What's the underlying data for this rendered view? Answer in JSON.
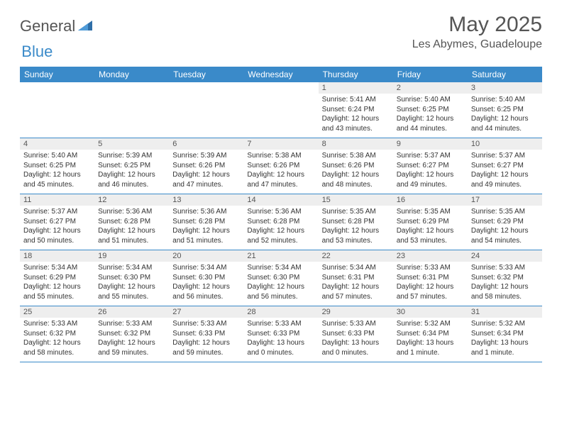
{
  "brand": {
    "name_gray": "General",
    "name_blue": "Blue"
  },
  "title": "May 2025",
  "location": "Les Abymes, Guadeloupe",
  "colors": {
    "header_bg": "#3a8ac9",
    "header_text": "#ffffff",
    "daynum_bg": "#eeeeee",
    "text": "#333333",
    "rule": "#3a8ac9"
  },
  "typography": {
    "title_fontsize": 30,
    "location_fontsize": 16,
    "dow_fontsize": 12,
    "cell_fontsize": 10
  },
  "days_of_week": [
    "Sunday",
    "Monday",
    "Tuesday",
    "Wednesday",
    "Thursday",
    "Friday",
    "Saturday"
  ],
  "layout": {
    "columns": 7,
    "rows": 5,
    "first_day_column_index": 4
  },
  "days": [
    {
      "n": 1,
      "sunrise": "5:41 AM",
      "sunset": "6:24 PM",
      "daylight": "12 hours and 43 minutes."
    },
    {
      "n": 2,
      "sunrise": "5:40 AM",
      "sunset": "6:25 PM",
      "daylight": "12 hours and 44 minutes."
    },
    {
      "n": 3,
      "sunrise": "5:40 AM",
      "sunset": "6:25 PM",
      "daylight": "12 hours and 44 minutes."
    },
    {
      "n": 4,
      "sunrise": "5:40 AM",
      "sunset": "6:25 PM",
      "daylight": "12 hours and 45 minutes."
    },
    {
      "n": 5,
      "sunrise": "5:39 AM",
      "sunset": "6:25 PM",
      "daylight": "12 hours and 46 minutes."
    },
    {
      "n": 6,
      "sunrise": "5:39 AM",
      "sunset": "6:26 PM",
      "daylight": "12 hours and 47 minutes."
    },
    {
      "n": 7,
      "sunrise": "5:38 AM",
      "sunset": "6:26 PM",
      "daylight": "12 hours and 47 minutes."
    },
    {
      "n": 8,
      "sunrise": "5:38 AM",
      "sunset": "6:26 PM",
      "daylight": "12 hours and 48 minutes."
    },
    {
      "n": 9,
      "sunrise": "5:37 AM",
      "sunset": "6:27 PM",
      "daylight": "12 hours and 49 minutes."
    },
    {
      "n": 10,
      "sunrise": "5:37 AM",
      "sunset": "6:27 PM",
      "daylight": "12 hours and 49 minutes."
    },
    {
      "n": 11,
      "sunrise": "5:37 AM",
      "sunset": "6:27 PM",
      "daylight": "12 hours and 50 minutes."
    },
    {
      "n": 12,
      "sunrise": "5:36 AM",
      "sunset": "6:28 PM",
      "daylight": "12 hours and 51 minutes."
    },
    {
      "n": 13,
      "sunrise": "5:36 AM",
      "sunset": "6:28 PM",
      "daylight": "12 hours and 51 minutes."
    },
    {
      "n": 14,
      "sunrise": "5:36 AM",
      "sunset": "6:28 PM",
      "daylight": "12 hours and 52 minutes."
    },
    {
      "n": 15,
      "sunrise": "5:35 AM",
      "sunset": "6:28 PM",
      "daylight": "12 hours and 53 minutes."
    },
    {
      "n": 16,
      "sunrise": "5:35 AM",
      "sunset": "6:29 PM",
      "daylight": "12 hours and 53 minutes."
    },
    {
      "n": 17,
      "sunrise": "5:35 AM",
      "sunset": "6:29 PM",
      "daylight": "12 hours and 54 minutes."
    },
    {
      "n": 18,
      "sunrise": "5:34 AM",
      "sunset": "6:29 PM",
      "daylight": "12 hours and 55 minutes."
    },
    {
      "n": 19,
      "sunrise": "5:34 AM",
      "sunset": "6:30 PM",
      "daylight": "12 hours and 55 minutes."
    },
    {
      "n": 20,
      "sunrise": "5:34 AM",
      "sunset": "6:30 PM",
      "daylight": "12 hours and 56 minutes."
    },
    {
      "n": 21,
      "sunrise": "5:34 AM",
      "sunset": "6:30 PM",
      "daylight": "12 hours and 56 minutes."
    },
    {
      "n": 22,
      "sunrise": "5:34 AM",
      "sunset": "6:31 PM",
      "daylight": "12 hours and 57 minutes."
    },
    {
      "n": 23,
      "sunrise": "5:33 AM",
      "sunset": "6:31 PM",
      "daylight": "12 hours and 57 minutes."
    },
    {
      "n": 24,
      "sunrise": "5:33 AM",
      "sunset": "6:32 PM",
      "daylight": "12 hours and 58 minutes."
    },
    {
      "n": 25,
      "sunrise": "5:33 AM",
      "sunset": "6:32 PM",
      "daylight": "12 hours and 58 minutes."
    },
    {
      "n": 26,
      "sunrise": "5:33 AM",
      "sunset": "6:32 PM",
      "daylight": "12 hours and 59 minutes."
    },
    {
      "n": 27,
      "sunrise": "5:33 AM",
      "sunset": "6:33 PM",
      "daylight": "12 hours and 59 minutes."
    },
    {
      "n": 28,
      "sunrise": "5:33 AM",
      "sunset": "6:33 PM",
      "daylight": "13 hours and 0 minutes."
    },
    {
      "n": 29,
      "sunrise": "5:33 AM",
      "sunset": "6:33 PM",
      "daylight": "13 hours and 0 minutes."
    },
    {
      "n": 30,
      "sunrise": "5:32 AM",
      "sunset": "6:34 PM",
      "daylight": "13 hours and 1 minute."
    },
    {
      "n": 31,
      "sunrise": "5:32 AM",
      "sunset": "6:34 PM",
      "daylight": "13 hours and 1 minute."
    }
  ],
  "labels": {
    "sunrise_prefix": "Sunrise: ",
    "sunset_prefix": "Sunset: ",
    "daylight_prefix": "Daylight: "
  }
}
